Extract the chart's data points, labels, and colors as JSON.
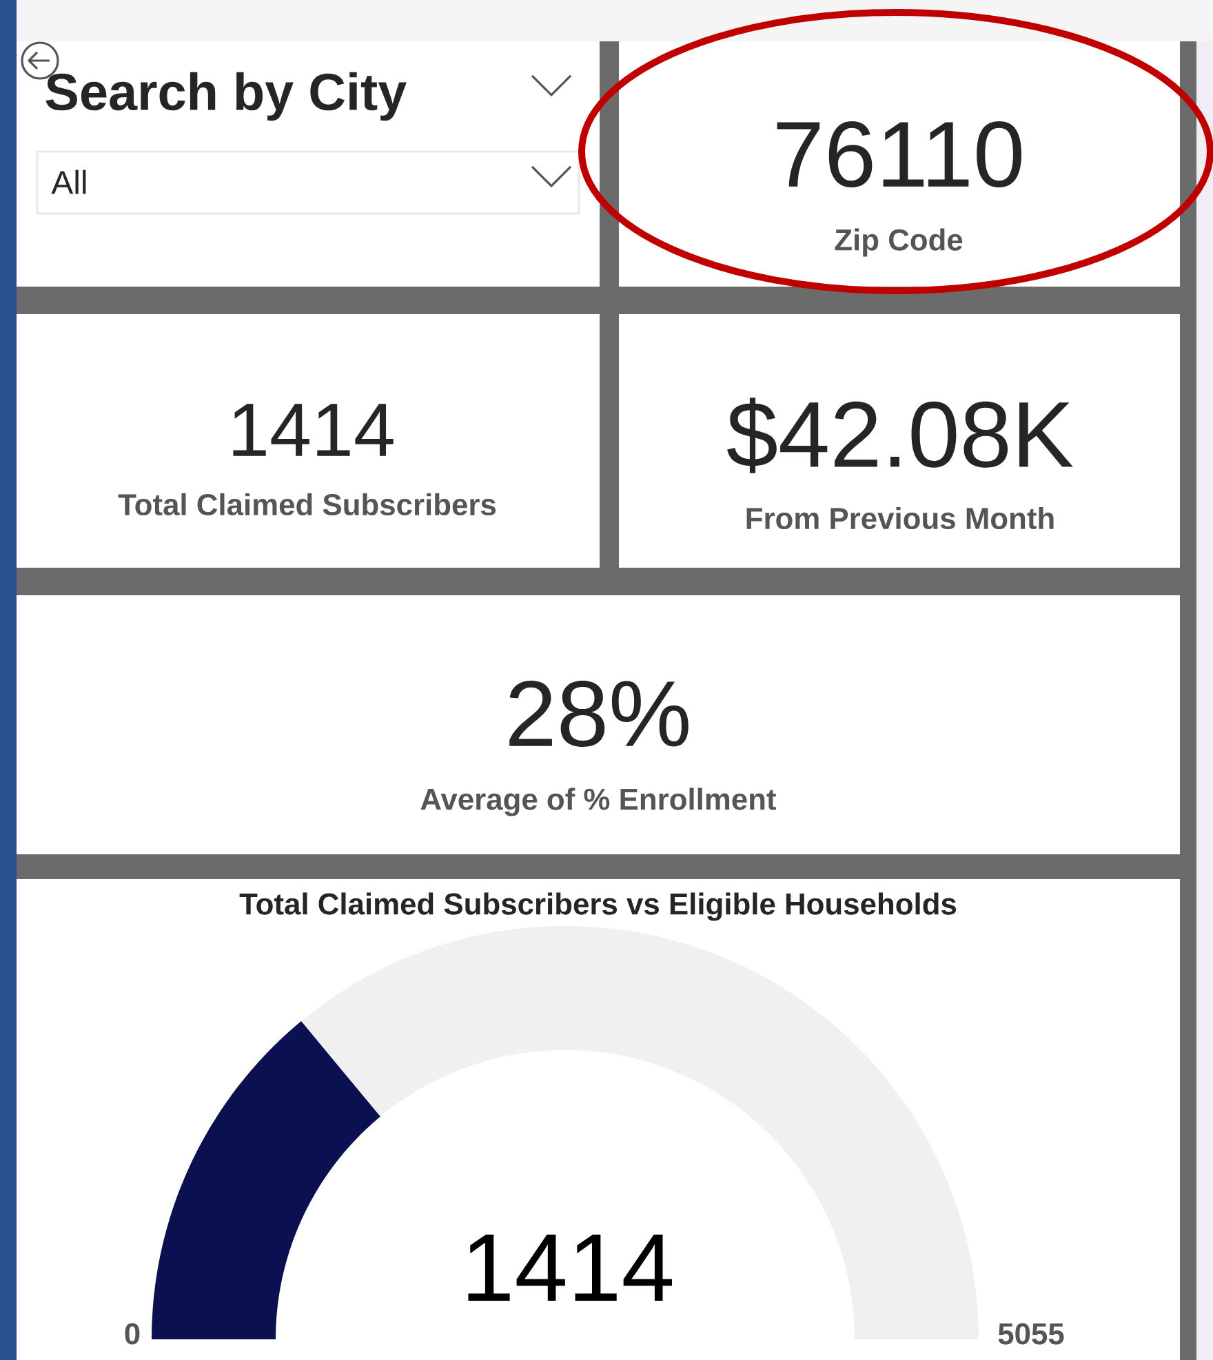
{
  "chart_data": [
    {
      "type": "other",
      "annotations": [
        "Search by City",
        "All",
        "76110",
        "Zip Code",
        "1414",
        "Total Claimed Subscribers",
        "$42.08K",
        "From Previous Month",
        "28%",
        "Average of % Enrollment"
      ]
    },
    {
      "type": "donut",
      "title": "Total Claimed Subscribers vs Eligible Households",
      "categories": [
        null,
        null
      ],
      "values": [
        27.97,
        72.03
      ],
      "colors": [
        "#0b1150",
        "#f0f0f0"
      ],
      "annotations": [
        "1414",
        "0",
        "5055"
      ]
    }
  ]
}
